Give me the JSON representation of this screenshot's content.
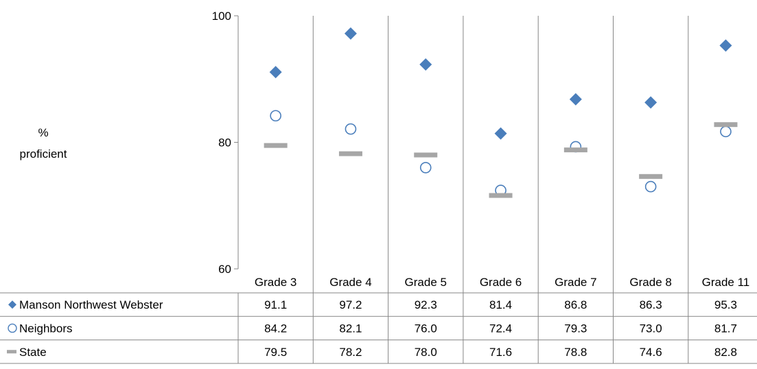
{
  "chart_data": {
    "type": "scatter",
    "ylabel_line1": "%",
    "ylabel_line2": "proficient",
    "ylim": [
      60,
      100
    ],
    "yticks": [
      "60",
      "80",
      "100"
    ],
    "categories": [
      "Grade 3",
      "Grade 4",
      "Grade 5",
      "Grade 6",
      "Grade 7",
      "Grade 8",
      "Grade 11"
    ],
    "series": [
      {
        "name": "Manson Northwest Webster",
        "marker": "diamond",
        "color": "#4a7ebb",
        "values": [
          91.1,
          97.2,
          92.3,
          81.4,
          86.8,
          86.3,
          95.3
        ],
        "labels": [
          "91.1",
          "97.2",
          "92.3",
          "81.4",
          "86.8",
          "86.3",
          "95.3"
        ]
      },
      {
        "name": "Neighbors",
        "marker": "circle",
        "color": "#4a7ebb",
        "values": [
          84.2,
          82.1,
          76.0,
          72.4,
          79.3,
          73.0,
          81.7
        ],
        "labels": [
          "84.2",
          "82.1",
          "76.0",
          "72.4",
          "79.3",
          "73.0",
          "81.7"
        ]
      },
      {
        "name": "State",
        "marker": "dash",
        "color": "#a6a6a6",
        "values": [
          79.5,
          78.2,
          78.0,
          71.6,
          78.8,
          74.6,
          82.8
        ],
        "labels": [
          "79.5",
          "78.2",
          "78.0",
          "71.6",
          "78.8",
          "74.6",
          "82.8"
        ]
      }
    ],
    "grid": "vertical separators between grades",
    "legend": "data table rows below chart"
  }
}
